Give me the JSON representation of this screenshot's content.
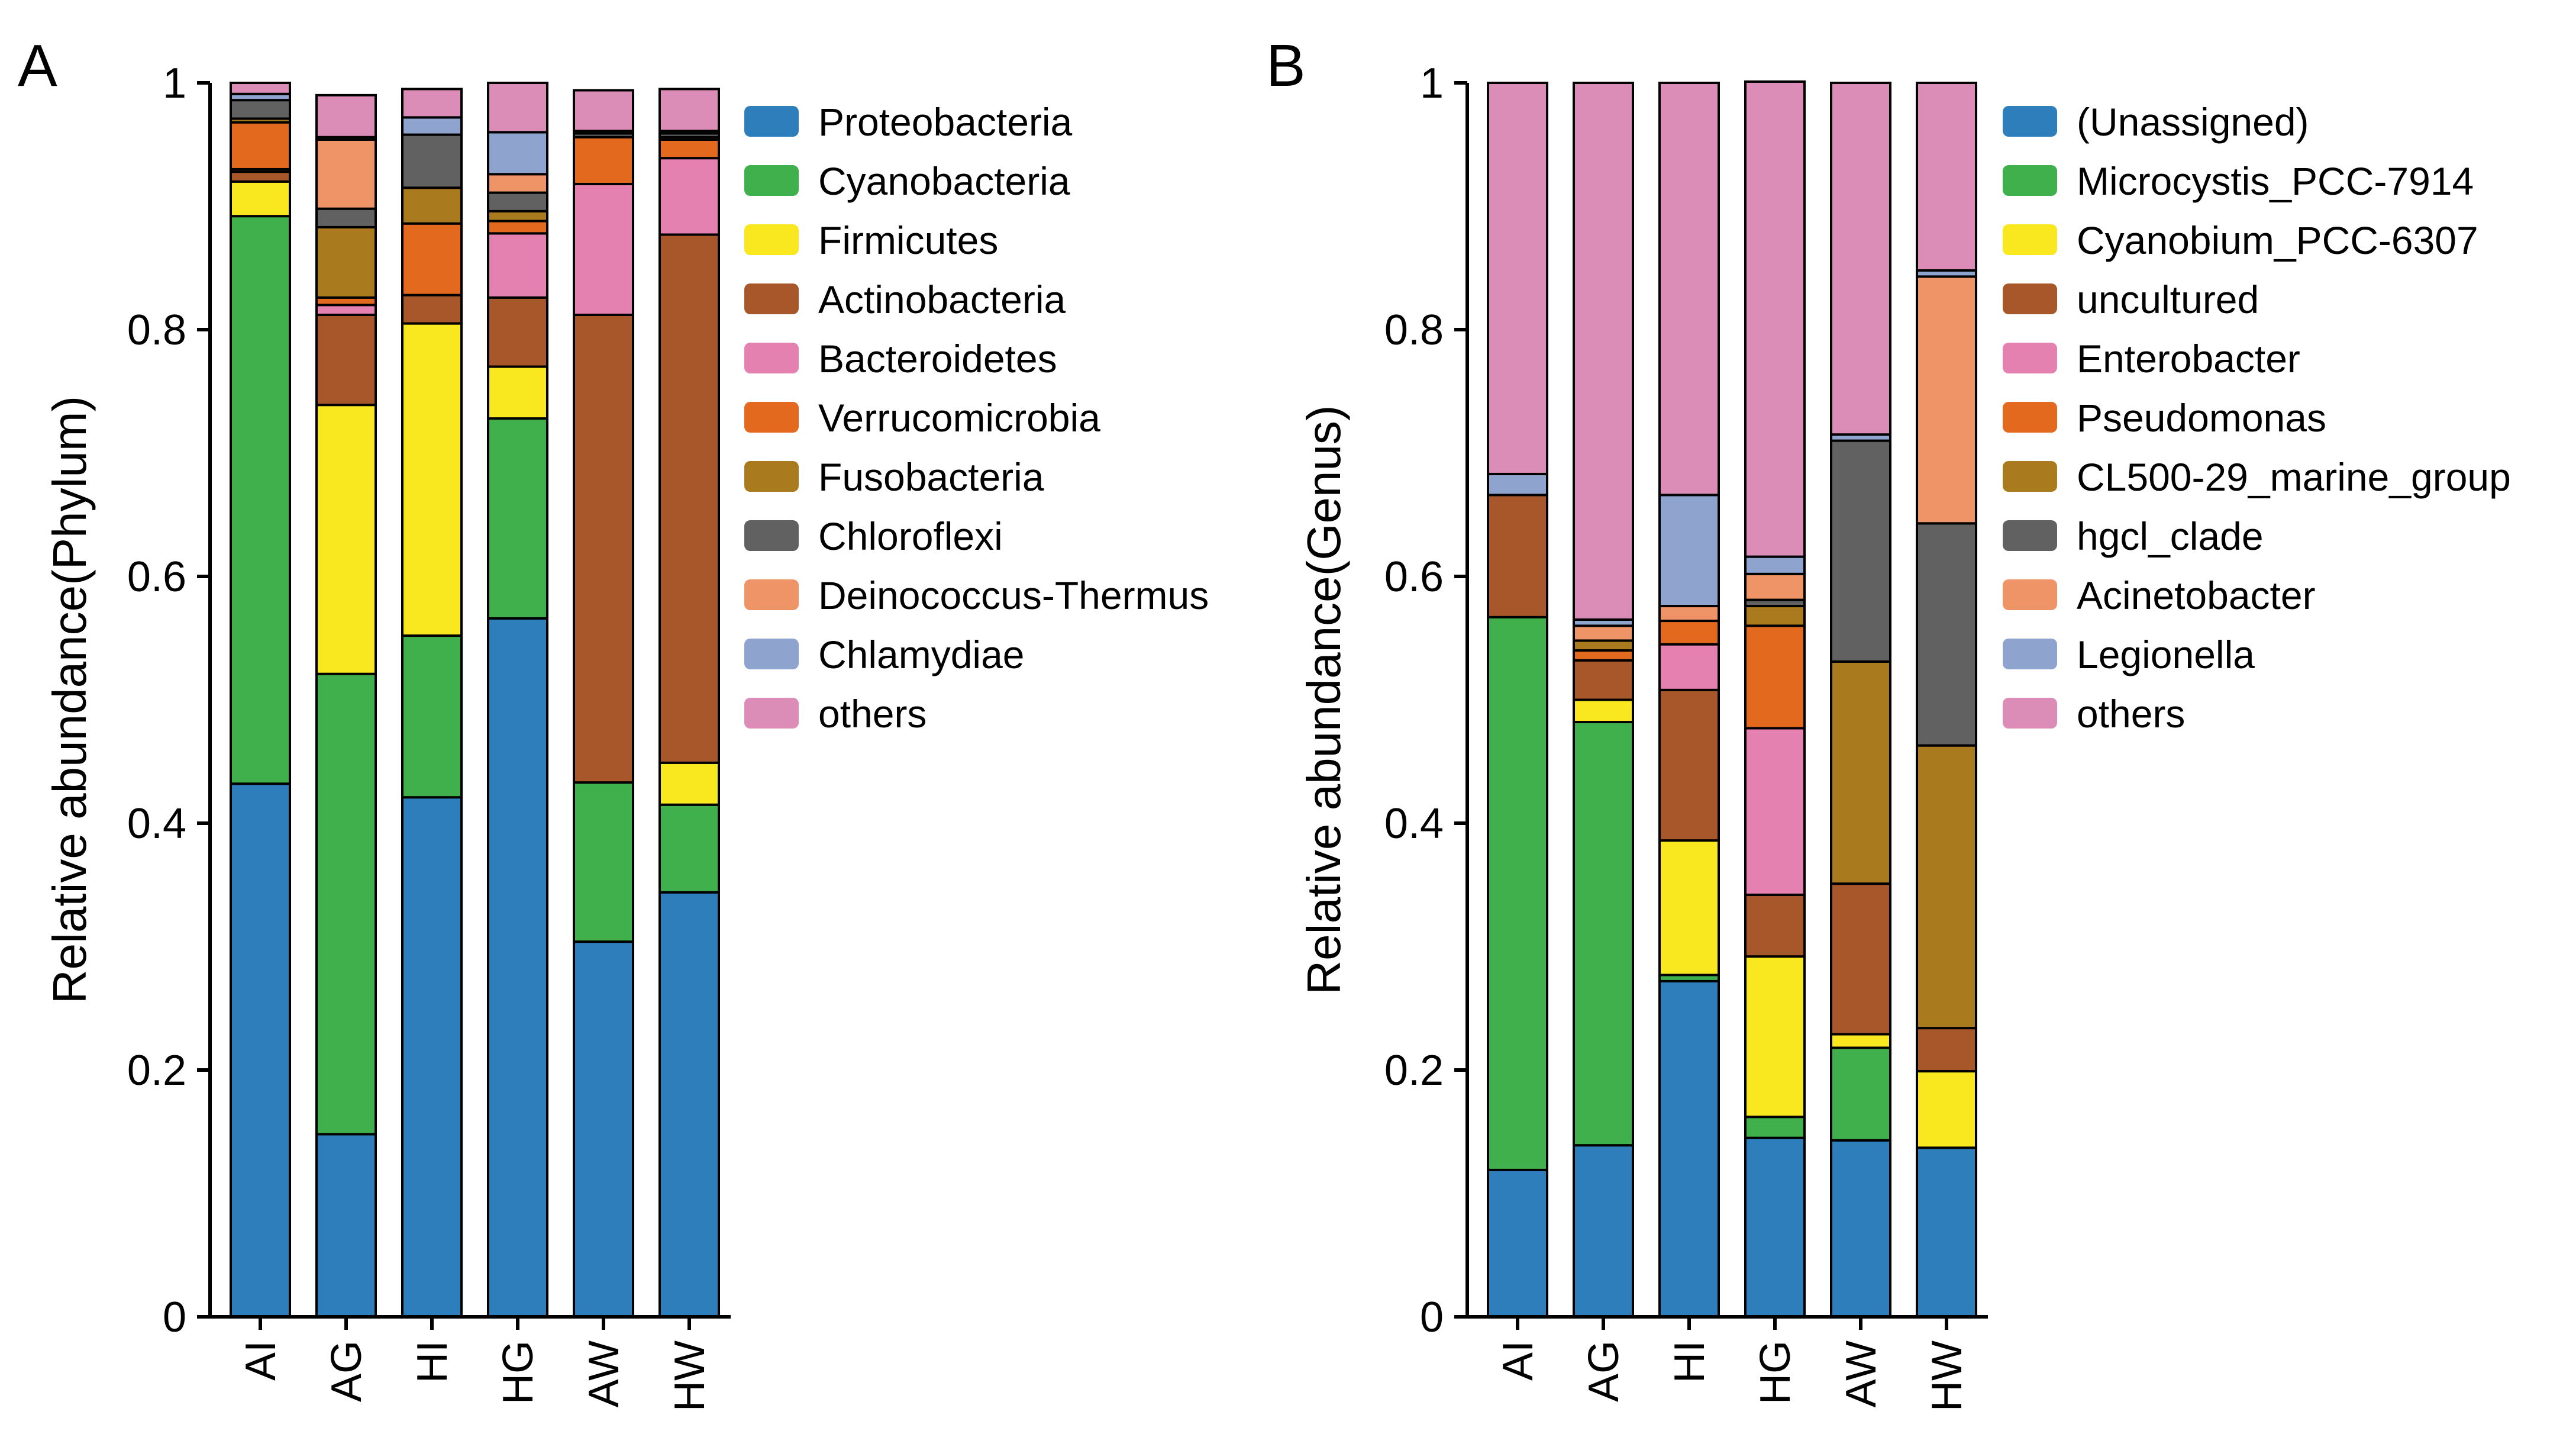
{
  "colors": {
    "blue": "#2E7EBC",
    "green": "#3FB04B",
    "yellow": "#F9E820",
    "brown": "#A8572A",
    "pink": "#E581B0",
    "orange": "#E3691F",
    "olive": "#AA7A1E",
    "gray": "#616161",
    "salmon": "#EE9466",
    "lightblue": "#8FA3CF",
    "mauve": "#DB8DB8"
  },
  "chart_data": [
    {
      "type": "bar",
      "stacked": true,
      "panel_label": "A",
      "ylabel": "Relative abundance(Phylum)",
      "xlabel": "",
      "ylim": [
        0,
        1
      ],
      "yticks": [
        "0",
        "0.2",
        "0.4",
        "0.6",
        "0.8",
        "1"
      ],
      "ytick_values": [
        0,
        0.2,
        0.4,
        0.6,
        0.8,
        1
      ],
      "categories": [
        "AI",
        "AG",
        "HI",
        "HG",
        "AW",
        "HW"
      ],
      "legend_position": "right",
      "series": [
        {
          "name": "Proteobacteria",
          "color_key": "blue",
          "values": [
            0.432,
            0.148,
            0.421,
            0.566,
            0.304,
            0.344
          ]
        },
        {
          "name": "Cyanobacteria",
          "color_key": "green",
          "values": [
            0.46,
            0.373,
            0.131,
            0.162,
            0.129,
            0.071
          ]
        },
        {
          "name": "Firmicutes",
          "color_key": "yellow",
          "values": [
            0.028,
            0.218,
            0.253,
            0.042,
            0.0,
            0.034
          ]
        },
        {
          "name": "Actinobacteria",
          "color_key": "brown",
          "values": [
            0.008,
            0.073,
            0.023,
            0.056,
            0.379,
            0.428
          ]
        },
        {
          "name": "Bacteroidetes",
          "color_key": "pink",
          "values": [
            0.002,
            0.008,
            0.0,
            0.052,
            0.106,
            0.062
          ]
        },
        {
          "name": "Verrucomicrobia",
          "color_key": "orange",
          "values": [
            0.038,
            0.006,
            0.058,
            0.01,
            0.038,
            0.015
          ]
        },
        {
          "name": "Fusobacteria",
          "color_key": "olive",
          "values": [
            0.003,
            0.057,
            0.029,
            0.008,
            0.0,
            0.002
          ]
        },
        {
          "name": "Chloroflexi",
          "color_key": "gray",
          "values": [
            0.015,
            0.015,
            0.043,
            0.015,
            0.003,
            0.003
          ]
        },
        {
          "name": "Deinococcus-Thermus",
          "color_key": "salmon",
          "values": [
            0.0,
            0.056,
            0.0,
            0.015,
            0.0,
            0.0
          ]
        },
        {
          "name": "Chlamydiae",
          "color_key": "lightblue",
          "values": [
            0.005,
            0.002,
            0.014,
            0.034,
            0.002,
            0.002
          ]
        },
        {
          "name": "others",
          "color_key": "mauve",
          "values": [
            0.009,
            0.034,
            0.023,
            0.04,
            0.033,
            0.034
          ]
        }
      ]
    },
    {
      "type": "bar",
      "stacked": true,
      "panel_label": "B",
      "ylabel": "Relative abundance(Genus)",
      "xlabel": "",
      "ylim": [
        0,
        1
      ],
      "yticks": [
        "0",
        "0.2",
        "0.4",
        "0.6",
        "0.8",
        "1"
      ],
      "ytick_values": [
        0,
        0.2,
        0.4,
        0.6,
        0.8,
        1
      ],
      "categories": [
        "AI",
        "AG",
        "HI",
        "HG",
        "AW",
        "HW"
      ],
      "legend_position": "right",
      "series": [
        {
          "name": "(Unassigned)",
          "color_key": "blue",
          "values": [
            0.119,
            0.139,
            0.272,
            0.145,
            0.143,
            0.137
          ]
        },
        {
          "name": "Microcystis_PCC-7914",
          "color_key": "green",
          "values": [
            0.448,
            0.343,
            0.005,
            0.017,
            0.075,
            0.0
          ]
        },
        {
          "name": "Cyanobium_PCC-6307",
          "color_key": "yellow",
          "values": [
            0.0,
            0.018,
            0.109,
            0.13,
            0.011,
            0.062
          ]
        },
        {
          "name": "uncultured",
          "color_key": "brown",
          "values": [
            0.099,
            0.032,
            0.122,
            0.05,
            0.122,
            0.035
          ]
        },
        {
          "name": "Enterobacter",
          "color_key": "pink",
          "values": [
            0.0,
            0.0,
            0.037,
            0.135,
            0.0,
            0.0
          ]
        },
        {
          "name": "Pseudomonas",
          "color_key": "orange",
          "values": [
            0.0,
            0.008,
            0.019,
            0.083,
            0.0,
            0.0
          ]
        },
        {
          "name": "CL500-29_marine_group",
          "color_key": "olive",
          "values": [
            0.0,
            0.008,
            0.0,
            0.016,
            0.18,
            0.229
          ]
        },
        {
          "name": "hgcl_clade",
          "color_key": "gray",
          "values": [
            0.0,
            0.0,
            0.0,
            0.005,
            0.179,
            0.18
          ]
        },
        {
          "name": "Acinetobacter",
          "color_key": "salmon",
          "values": [
            0.0,
            0.012,
            0.012,
            0.021,
            0.0,
            0.2
          ]
        },
        {
          "name": "Legionella",
          "color_key": "lightblue",
          "values": [
            0.017,
            0.005,
            0.09,
            0.014,
            0.005,
            0.005
          ]
        },
        {
          "name": "others",
          "color_key": "mauve",
          "values": [
            0.317,
            0.435,
            0.334,
            0.385,
            0.285,
            0.152
          ]
        }
      ]
    }
  ]
}
